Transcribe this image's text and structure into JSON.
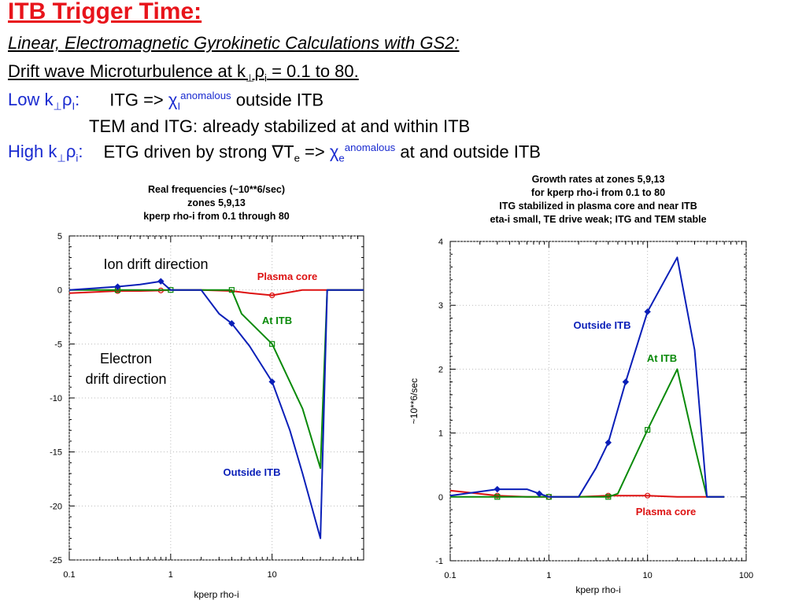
{
  "slide": {
    "title": "ITB Trigger Time:",
    "subtitle1": "Linear, Electromagnetic Gyrokinetic Calculations with GS2:",
    "subtitle2_pre": "Drift wave Microturbulence at k",
    "subtitle2_sub1": "⊥",
    "subtitle2_rho": "ρ",
    "subtitle2_sub2": "i",
    "subtitle2_post": " = 0.1 to 80.",
    "low_label_pre": "Low k",
    "low_label_sub1": "⊥",
    "low_label_rho": "ρ",
    "low_label_sub2": "I",
    "low_label_colon": ":",
    "low_text_pre": "ITG => ",
    "low_chi": "χ",
    "low_chi_sub": "I",
    "low_chi_sup": "anomalous",
    "low_text_post": " outside ITB",
    "tem_line": "TEM and ITG: already stabilized at and within ITB",
    "high_label_pre": "High k",
    "high_label_sub1": "⊥",
    "high_label_rho": "ρ",
    "high_label_sub2": "i",
    "high_label_colon": ":",
    "high_text_pre": "ETG driven by strong ",
    "high_nabla": "∇",
    "high_T": "T",
    "high_T_sub": "e",
    "high_arrow": " => ",
    "high_chi": "χ",
    "high_chi_sub": "e",
    "high_chi_sup": "anomalous",
    "high_text_post": " at and outside ITB"
  },
  "colors": {
    "title": "#e8141b",
    "blue_text": "#1a2bd0",
    "plasma_core": "#dd1111",
    "at_itb": "#0a8a0a",
    "outside_itb": "#0a1fb8"
  },
  "chart_data": [
    {
      "type": "line",
      "title_lines": [
        "Real frequencies (~10**6/sec)",
        "zones 5,9,13",
        "kperp rho-i from 0.1 through 80"
      ],
      "xlabel": "kperp rho-i",
      "ylabel": "",
      "xscale": "log",
      "xlim": [
        0.1,
        80
      ],
      "ylim": [
        -25,
        5
      ],
      "xticks": [
        "0.1",
        "1",
        "10"
      ],
      "yticks": [
        "5",
        "0",
        "-5",
        "-10",
        "-15",
        "-20",
        "-25"
      ],
      "annotations": [
        "Ion drift direction",
        "Electron",
        "drift direction"
      ],
      "series": [
        {
          "name": "Plasma core",
          "color": "#dd1111",
          "x": [
            0.1,
            0.3,
            0.5,
            0.8,
            1.0,
            2.0,
            4.0,
            6.0,
            10.0,
            20.0,
            30.0,
            60.0,
            80.0
          ],
          "y": [
            -0.3,
            -0.1,
            -0.1,
            -0.05,
            0.0,
            0.0,
            -0.1,
            -0.3,
            -0.5,
            0.0,
            0.0,
            0.0,
            0.0
          ]
        },
        {
          "name": "At ITB",
          "color": "#0a8a0a",
          "x": [
            0.1,
            0.3,
            0.8,
            1.0,
            2.0,
            4.0,
            5.0,
            10.0,
            20.0,
            30.0,
            35.0,
            60.0,
            80.0
          ],
          "y": [
            0.0,
            0.0,
            0.0,
            0.0,
            0.0,
            0.0,
            -2.2,
            -5.0,
            -11.0,
            -16.5,
            0.0,
            0.0,
            0.0
          ]
        },
        {
          "name": "Outside ITB",
          "color": "#0a1fb8",
          "x": [
            0.1,
            0.3,
            0.5,
            0.8,
            1.0,
            2.0,
            3.0,
            4.0,
            6.0,
            10.0,
            15.0,
            20.0,
            30.0,
            35.0,
            60.0,
            80.0
          ],
          "y": [
            0.0,
            0.3,
            0.5,
            0.8,
            0.0,
            0.0,
            -2.2,
            -3.1,
            -5.2,
            -8.5,
            -13.0,
            -17.0,
            -23.0,
            0.0,
            0.0,
            0.0
          ]
        }
      ]
    },
    {
      "type": "line",
      "title_lines": [
        "Growth rates at zones 5,9,13",
        "for kperp rho-i from 0.1 to 80",
        "ITG stabilized in plasma core and near ITB",
        "eta-i small, TE drive weak; ITG and TEM stable"
      ],
      "xlabel": "kperp rho-i",
      "ylabel": "~10**6/sec",
      "xscale": "log",
      "xlim": [
        0.1,
        100
      ],
      "ylim": [
        -1,
        4
      ],
      "xticks": [
        "0.1",
        "1",
        "10",
        "100"
      ],
      "yticks": [
        "4",
        "3",
        "2",
        "1",
        "0",
        "-1"
      ],
      "series": [
        {
          "name": "Plasma core",
          "color": "#dd1111",
          "x": [
            0.1,
            0.3,
            0.6,
            1.0,
            2.0,
            4.0,
            10.0,
            20.0,
            40.0,
            60.0
          ],
          "y": [
            0.1,
            0.02,
            0.0,
            0.0,
            0.0,
            0.02,
            0.02,
            0.0,
            0.0,
            0.0
          ]
        },
        {
          "name": "At ITB",
          "color": "#0a8a0a",
          "x": [
            0.1,
            0.3,
            0.6,
            1.0,
            2.0,
            4.0,
            5.0,
            10.0,
            20.0,
            30.0,
            40.0,
            60.0
          ],
          "y": [
            0.0,
            0.0,
            0.0,
            0.0,
            0.0,
            0.0,
            0.05,
            1.05,
            2.0,
            0.8,
            0.0,
            0.0
          ]
        },
        {
          "name": "Outside ITB",
          "color": "#0a1fb8",
          "x": [
            0.1,
            0.3,
            0.6,
            0.8,
            1.0,
            2.0,
            3.0,
            4.0,
            6.0,
            10.0,
            20.0,
            30.0,
            40.0,
            60.0
          ],
          "y": [
            0.02,
            0.12,
            0.12,
            0.05,
            0.0,
            0.0,
            0.45,
            0.85,
            1.8,
            2.9,
            3.75,
            2.3,
            0.0,
            0.0
          ]
        }
      ]
    }
  ]
}
